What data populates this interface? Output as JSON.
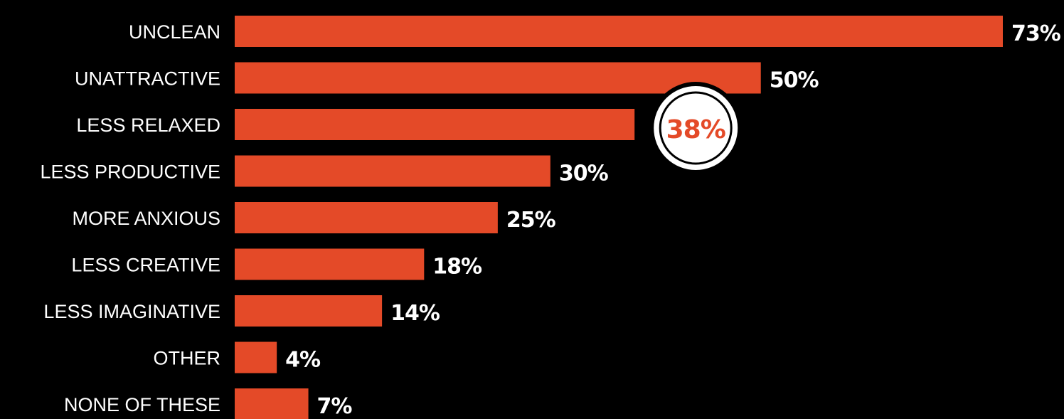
{
  "chart_data": {
    "type": "bar",
    "orientation": "horizontal",
    "categories": [
      "UNCLEAN",
      "UNATTRACTIVE",
      "LESS RELAXED",
      "LESS PRODUCTIVE",
      "MORE ANXIOUS",
      "LESS CREATIVE",
      "LESS IMAGINATIVE",
      "OTHER",
      "NONE OF THESE"
    ],
    "values": [
      73,
      50,
      38,
      30,
      25,
      18,
      14,
      4,
      7
    ],
    "value_labels": [
      "73%",
      "50%",
      "38%",
      "30%",
      "25%",
      "18%",
      "14%",
      "4%",
      "7%"
    ],
    "highlight_category": "LESS RELAXED",
    "xlim": [
      0,
      73
    ],
    "grid": false,
    "legend": "none"
  },
  "colors": {
    "background": "#000000",
    "bar": "#e44a28",
    "text": "#ffffff",
    "highlight_text": "#e44a28",
    "highlight_circle_fill": "#ffffff",
    "highlight_circle_stroke": "#000000"
  }
}
